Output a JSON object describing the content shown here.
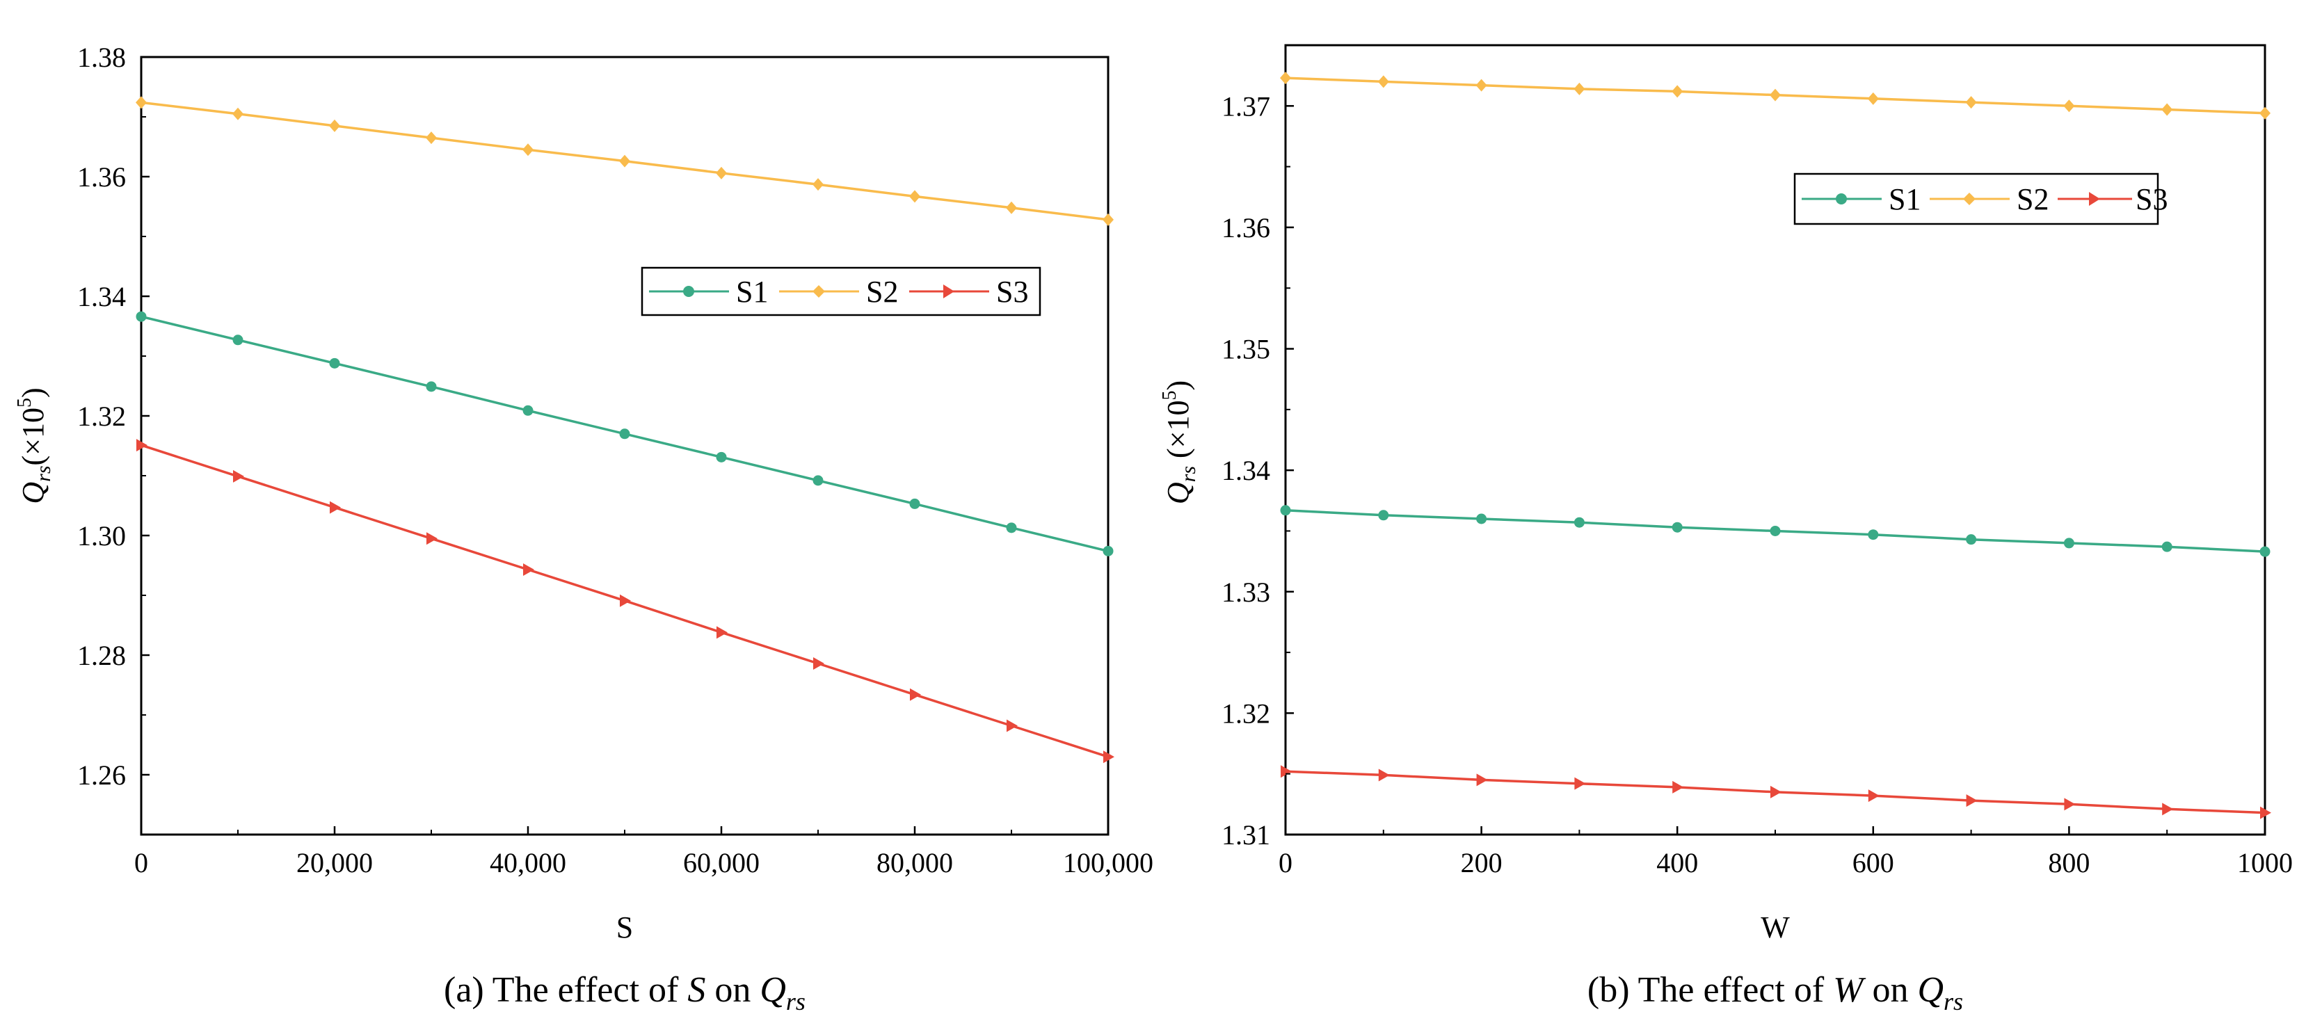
{
  "figure_captions": {
    "a": {
      "prefix": "(a) The effect of",
      "var": "S",
      "mid": "on",
      "q": "Q",
      "sub": "rs"
    },
    "b": {
      "prefix": "(b) The effect of",
      "var": "W",
      "mid": "on",
      "q": "Q",
      "sub": "rs"
    }
  },
  "chart_data": [
    {
      "type": "line",
      "title": "",
      "xlabel": "S",
      "ylabel": {
        "q": "Q",
        "sub": "rs",
        "rest": "(×10",
        "exp": "5",
        "close": ")"
      },
      "xlim": [
        0,
        100000
      ],
      "ylim": [
        1.25,
        1.38
      ],
      "x_ticks": [
        0,
        20000,
        40000,
        60000,
        80000,
        100000
      ],
      "x_tick_labels": [
        "0",
        "20,000",
        "40,000",
        "60,000",
        "80,000",
        "100,000"
      ],
      "y_ticks": [
        1.26,
        1.28,
        1.3,
        1.32,
        1.34,
        1.36,
        1.38
      ],
      "y_tick_labels": [
        "1.26",
        "1.28",
        "1.30",
        "1.32",
        "1.34",
        "1.36",
        "1.38"
      ],
      "legend_position": "center-right",
      "x": [
        0,
        10000,
        20000,
        30000,
        40000,
        50000,
        60000,
        70000,
        80000,
        90000,
        100000
      ],
      "series": [
        {
          "name": "S1",
          "color": "#3aaa86",
          "marker": "circle",
          "values": [
            1.3366,
            1.3327,
            1.3288,
            1.3249,
            1.3209,
            1.317,
            1.3131,
            1.3092,
            1.3053,
            1.3013,
            1.2974
          ]
        },
        {
          "name": "S2",
          "color": "#f9bb4c",
          "marker": "diamond",
          "values": [
            1.3724,
            1.3705,
            1.3685,
            1.3665,
            1.3645,
            1.3626,
            1.3606,
            1.3587,
            1.3567,
            1.3548,
            1.3528
          ]
        },
        {
          "name": "S3",
          "color": "#e8483a",
          "marker": "triangle-right",
          "values": [
            1.3151,
            1.3099,
            1.3047,
            1.2995,
            1.2943,
            1.2891,
            1.2838,
            1.2786,
            1.2734,
            1.2682,
            1.263
          ]
        }
      ]
    },
    {
      "type": "line",
      "title": "",
      "xlabel": "W",
      "ylabel": {
        "q": "Q",
        "sub": "rs",
        "rest": " (×10",
        "exp": "5",
        "close": ")"
      },
      "xlim": [
        0,
        1000
      ],
      "ylim": [
        1.31,
        1.375
      ],
      "x_ticks": [
        0,
        200,
        400,
        600,
        800,
        1000
      ],
      "x_tick_labels": [
        "0",
        "200",
        "400",
        "600",
        "800",
        "1000"
      ],
      "y_ticks": [
        1.31,
        1.32,
        1.33,
        1.34,
        1.35,
        1.36,
        1.37
      ],
      "y_tick_labels": [
        "1.31",
        "1.32",
        "1.33",
        "1.34",
        "1.35",
        "1.36",
        "1.37"
      ],
      "legend_position": "top-right",
      "x": [
        0,
        100,
        200,
        300,
        400,
        500,
        600,
        700,
        800,
        900,
        1000
      ],
      "series": [
        {
          "name": "S1",
          "color": "#3aaa86",
          "marker": "circle",
          "values": [
            1.3367,
            1.3363,
            1.336,
            1.3357,
            1.3353,
            1.335,
            1.3347,
            1.3343,
            1.334,
            1.3337,
            1.3333
          ]
        },
        {
          "name": "S2",
          "color": "#f9bb4c",
          "marker": "diamond",
          "values": [
            1.3723,
            1.372,
            1.3717,
            1.3714,
            1.3712,
            1.3709,
            1.3706,
            1.3703,
            1.37,
            1.3697,
            1.3694
          ]
        },
        {
          "name": "S3",
          "color": "#e8483a",
          "marker": "triangle-right",
          "values": [
            1.3152,
            1.3149,
            1.3145,
            1.3142,
            1.3139,
            1.3135,
            1.3132,
            1.3128,
            1.3125,
            1.3121,
            1.3118
          ]
        }
      ]
    }
  ]
}
